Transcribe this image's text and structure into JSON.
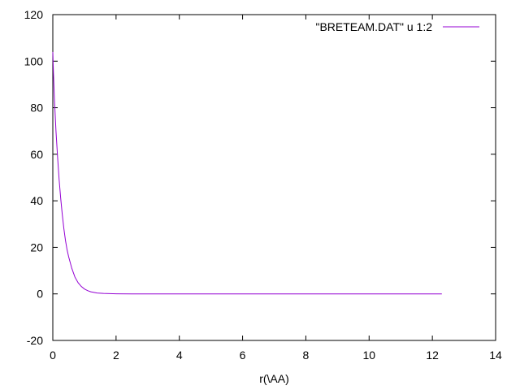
{
  "chart_data": {
    "type": "line",
    "title": "",
    "xlabel": "r(\\AA)",
    "ylabel": "",
    "xlim": [
      0,
      14
    ],
    "ylim": [
      -20,
      120
    ],
    "xticks": [
      "0",
      "2",
      "4",
      "6",
      "8",
      "10",
      "12",
      "14"
    ],
    "yticks": [
      "-20",
      "0",
      "20",
      "40",
      "60",
      "80",
      "100",
      "120"
    ],
    "grid": false,
    "legend_position": "top-right",
    "series": [
      {
        "name": "\"BRETEAM.DAT\" u 1:2",
        "color": "#9400d3",
        "x": [
          0.0,
          0.02,
          0.05,
          0.1,
          0.15,
          0.2,
          0.25,
          0.3,
          0.35,
          0.4,
          0.45,
          0.5,
          0.6,
          0.7,
          0.8,
          0.9,
          1.0,
          1.1,
          1.2,
          1.4,
          1.6,
          1.8,
          2.0,
          2.5,
          3.0,
          4.0,
          6.0,
          8.0,
          10.0,
          12.3
        ],
        "y": [
          104,
          95,
          84,
          70,
          59,
          49,
          41,
          34,
          28,
          23,
          19,
          16,
          11,
          7.2,
          4.8,
          3.2,
          2.1,
          1.4,
          0.9,
          0.4,
          0.2,
          0.1,
          0.05,
          0.01,
          0,
          0,
          0,
          0,
          0,
          0
        ]
      }
    ]
  }
}
